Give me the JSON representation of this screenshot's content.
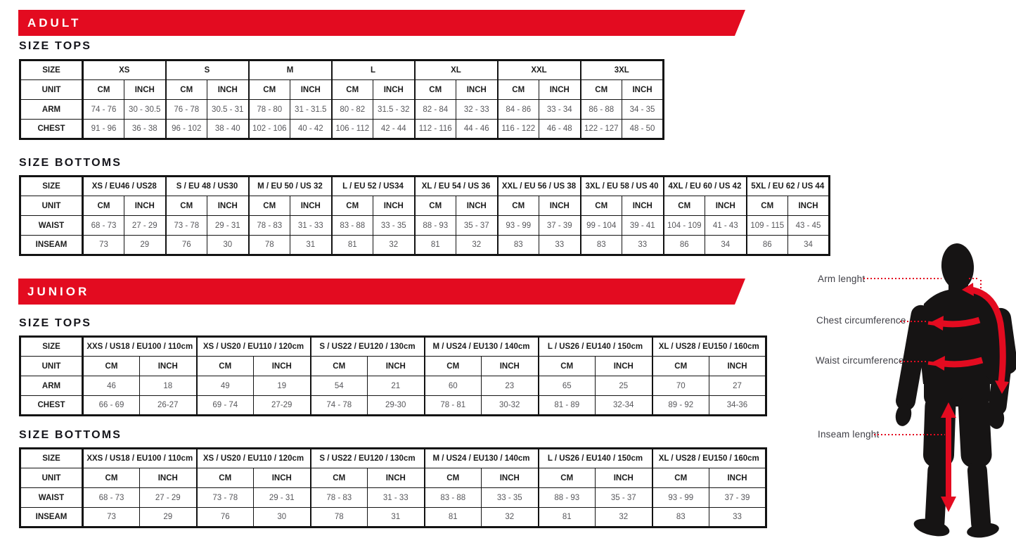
{
  "sections": [
    {
      "banner": "ADULT",
      "tables": [
        {
          "heading": "SIZE TOPS",
          "size_label": "SIZE",
          "unit_label": "UNIT",
          "cm_label": "CM",
          "inch_label": "INCH",
          "groups": [
            "XS",
            "S",
            "M",
            "L",
            "XL",
            "XXL",
            "3XL"
          ],
          "rows": [
            {
              "label": "ARM",
              "cells": [
                [
                  "74 - 76",
                  "30 - 30.5"
                ],
                [
                  "76 - 78",
                  "30.5 - 31"
                ],
                [
                  "78 - 80",
                  "31 - 31.5"
                ],
                [
                  "80 - 82",
                  "31.5 - 32"
                ],
                [
                  "82 - 84",
                  "32 - 33"
                ],
                [
                  "84 - 86",
                  "33 - 34"
                ],
                [
                  "86 - 88",
                  "34 - 35"
                ]
              ]
            },
            {
              "label": "CHEST",
              "cells": [
                [
                  "91 - 96",
                  "36 - 38"
                ],
                [
                  "96 - 102",
                  "38 - 40"
                ],
                [
                  "102 - 106",
                  "40 - 42"
                ],
                [
                  "106 - 112",
                  "42 - 44"
                ],
                [
                  "112 - 116",
                  "44 - 46"
                ],
                [
                  "116 - 122",
                  "46 - 48"
                ],
                [
                  "122 - 127",
                  "48 - 50"
                ]
              ]
            }
          ]
        },
        {
          "heading": "SIZE BOTTOMS",
          "size_label": "SIZE",
          "unit_label": "UNIT",
          "cm_label": "CM",
          "inch_label": "INCH",
          "groups": [
            "XS / EU46 / US28",
            "S / EU 48 / US30",
            "M / EU 50 / US 32",
            "L / EU 52 / US34",
            "XL / EU 54 / US 36",
            "XXL / EU 56 / US 38",
            "3XL / EU 58 / US 40",
            "4XL / EU 60 / US 42",
            "5XL / EU 62 / US 44"
          ],
          "rows": [
            {
              "label": "WAIST",
              "cells": [
                [
                  "68 - 73",
                  "27 - 29"
                ],
                [
                  "73 - 78",
                  "29 - 31"
                ],
                [
                  "78 - 83",
                  "31 - 33"
                ],
                [
                  "83 - 88",
                  "33 - 35"
                ],
                [
                  "88 - 93",
                  "35 - 37"
                ],
                [
                  "93 - 99",
                  "37 - 39"
                ],
                [
                  "99 - 104",
                  "39 - 41"
                ],
                [
                  "104 - 109",
                  "41 - 43"
                ],
                [
                  "109 - 115",
                  "43 - 45"
                ]
              ]
            },
            {
              "label": "INSEAM",
              "cells": [
                [
                  "73",
                  "29"
                ],
                [
                  "76",
                  "30"
                ],
                [
                  "78",
                  "31"
                ],
                [
                  "81",
                  "32"
                ],
                [
                  "81",
                  "32"
                ],
                [
                  "83",
                  "33"
                ],
                [
                  "83",
                  "33"
                ],
                [
                  "86",
                  "34"
                ],
                [
                  "86",
                  "34"
                ]
              ]
            }
          ]
        }
      ]
    },
    {
      "banner": "JUNIOR",
      "tables": [
        {
          "heading": "SIZE TOPS",
          "size_label": "SIZE",
          "unit_label": "UNIT",
          "cm_label": "CM",
          "inch_label": "INCH",
          "groups": [
            "XXS / US18 / EU100 / 110cm",
            "XS / US20 / EU110 / 120cm",
            "S / US22 / EU120 / 130cm",
            "M / US24 / EU130 / 140cm",
            "L / US26 / EU140 / 150cm",
            "XL / US28 / EU150 / 160cm"
          ],
          "rows": [
            {
              "label": "ARM",
              "cells": [
                [
                  "46",
                  "18"
                ],
                [
                  "49",
                  "19"
                ],
                [
                  "54",
                  "21"
                ],
                [
                  "60",
                  "23"
                ],
                [
                  "65",
                  "25"
                ],
                [
                  "70",
                  "27"
                ]
              ]
            },
            {
              "label": "CHEST",
              "cells": [
                [
                  "66 - 69",
                  "26-27"
                ],
                [
                  "69 - 74",
                  "27-29"
                ],
                [
                  "74 - 78",
                  "29-30"
                ],
                [
                  "78 - 81",
                  "30-32"
                ],
                [
                  "81 - 89",
                  "32-34"
                ],
                [
                  "89 - 92",
                  "34-36"
                ]
              ]
            }
          ]
        },
        {
          "heading": "SIZE BOTTOMS",
          "size_label": "SIZE",
          "unit_label": "UNIT",
          "cm_label": "CM",
          "inch_label": "INCH",
          "groups": [
            "XXS / US18 / EU100 / 110cm",
            "XS / US20 / EU110 / 120cm",
            "S / US22 / EU120 / 130cm",
            "M / US24 / EU130 / 140cm",
            "L / US26 / EU140 / 150cm",
            "XL / US28 / EU150 / 160cm"
          ],
          "rows": [
            {
              "label": "WAIST",
              "cells": [
                [
                  "68 - 73",
                  "27 - 29"
                ],
                [
                  "73 - 78",
                  "29 - 31"
                ],
                [
                  "78 - 83",
                  "31 - 33"
                ],
                [
                  "83 - 88",
                  "33 - 35"
                ],
                [
                  "88 - 93",
                  "35 - 37"
                ],
                [
                  "93 - 99",
                  "37 - 39"
                ]
              ]
            },
            {
              "label": "INSEAM",
              "cells": [
                [
                  "73",
                  "29"
                ],
                [
                  "76",
                  "30"
                ],
                [
                  "78",
                  "31"
                ],
                [
                  "81",
                  "32"
                ],
                [
                  "81",
                  "32"
                ],
                [
                  "83",
                  "33"
                ]
              ]
            }
          ]
        }
      ]
    }
  ],
  "figure": {
    "labels": {
      "arm": "Arm lenght",
      "chest": "Chest circumference",
      "waist": "Waist circumference",
      "inseam": "Inseam lenght"
    }
  },
  "colors": {
    "accent_red": "#e30b20",
    "table_border": "#131313",
    "value_text": "#57575b",
    "heading_text": "#15151b",
    "figure_label_text": "#3f3f46"
  }
}
